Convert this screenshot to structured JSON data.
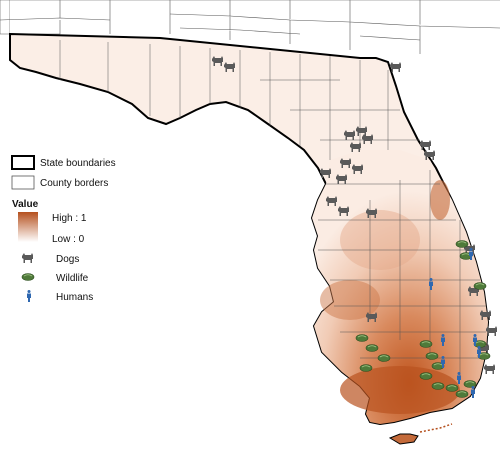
{
  "legend": {
    "state_boundaries": "State boundaries",
    "county_borders": "County borders",
    "value_title": "Value",
    "high_label": "High : 1",
    "low_label": "Low : 0",
    "dogs": "Dogs",
    "wildlife": "Wildlife",
    "humans": "Humans"
  },
  "colors": {
    "high": "#b5501e",
    "low": "#ffffff",
    "county_lines": "#555555",
    "state_lines": "#000000",
    "dog_icon": "#5a5a5a",
    "wildlife_icon": "#4f7a3a",
    "human_icon": "#2f68b0"
  },
  "icons": [
    "dog-icon",
    "wildlife-icon",
    "human-icon"
  ]
}
